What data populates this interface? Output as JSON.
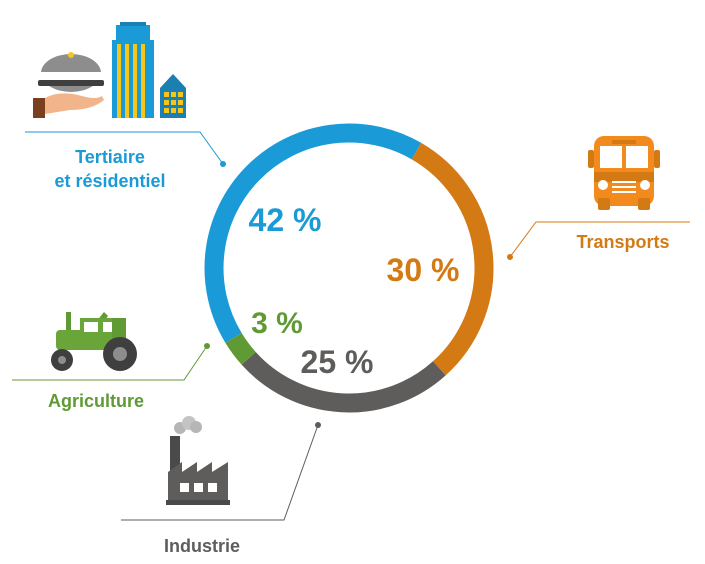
{
  "chart_data": {
    "type": "pie",
    "title": "",
    "unit": "%",
    "slices": [
      {
        "key": "tertiaire",
        "labels": [
          "Tertiaire",
          "et résidentiel"
        ],
        "value": 42,
        "value_label": "42 %",
        "color": "#1a9ad6",
        "icon": "building-icon"
      },
      {
        "key": "transports",
        "labels": [
          "Transports"
        ],
        "value": 30,
        "value_label": "30 %",
        "color": "#d47a14",
        "icon": "bus-icon"
      },
      {
        "key": "industrie",
        "labels": [
          "Industrie"
        ],
        "value": 25,
        "value_label": "25 %",
        "color": "#5e5d5c",
        "icon": "factory-icon"
      },
      {
        "key": "agriculture",
        "labels": [
          "Agriculture"
        ],
        "value": 3,
        "value_label": "3 %",
        "color": "#5f9a34",
        "icon": "tractor-icon"
      }
    ]
  }
}
